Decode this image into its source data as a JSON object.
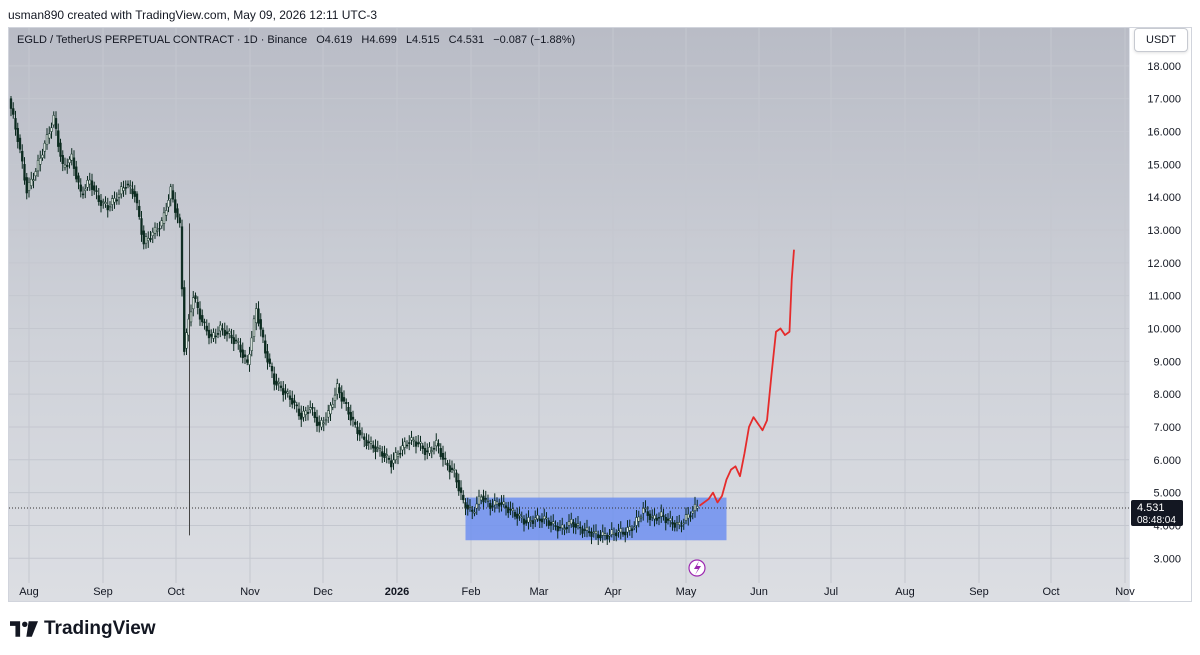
{
  "caption": "usman890 created with TradingView.com, May 09, 2026 12:11 UTC-3",
  "legend": {
    "symbol": "EGLD / TetherUS PERPETUAL CONTRACT · 1D · Binance",
    "open": "O4.619",
    "high": "H4.699",
    "low": "L4.515",
    "close": "C4.531",
    "change": "−0.087 (−1.88%)"
  },
  "currency": "USDT",
  "brand": "TradingView",
  "colors": {
    "up": "#0b2a1f",
    "down": "#0b2a1f",
    "projection": "#e52b2b",
    "box": "#6f8ff0"
  },
  "chart_data": {
    "type": "candlestick",
    "y_ticks": [
      "3.000",
      "4.000",
      "5.000",
      "6.000",
      "7.000",
      "8.000",
      "9.000",
      "10.000",
      "11.000",
      "12.000",
      "13.000",
      "14.000",
      "15.000",
      "16.000",
      "17.000",
      "18.000"
    ],
    "y_range": [
      2.4,
      18.3
    ],
    "x_labels": [
      "Aug",
      "Sep",
      "Oct",
      "Nov",
      "Dec",
      "2026",
      "Feb",
      "Mar",
      "Apr",
      "May",
      "Jun",
      "Jul",
      "Aug",
      "Sep",
      "Oct",
      "Nov"
    ],
    "last_price": "4.531",
    "countdown": "08:48:04",
    "price_path": [
      [
        0,
        17.0
      ],
      [
        4,
        15.8
      ],
      [
        8,
        14.2
      ],
      [
        12,
        14.8
      ],
      [
        16,
        15.6
      ],
      [
        20,
        16.4
      ],
      [
        24,
        14.9
      ],
      [
        28,
        15.2
      ],
      [
        32,
        14.1
      ],
      [
        36,
        14.5
      ],
      [
        40,
        13.9
      ],
      [
        44,
        13.7
      ],
      [
        48,
        14.0
      ],
      [
        52,
        14.4
      ],
      [
        56,
        14.1
      ],
      [
        60,
        12.6
      ],
      [
        64,
        12.9
      ],
      [
        68,
        13.2
      ],
      [
        72,
        14.2
      ],
      [
        76,
        13.1
      ],
      [
        78,
        9.4
      ],
      [
        82,
        11.0
      ],
      [
        86,
        10.2
      ],
      [
        90,
        9.7
      ],
      [
        94,
        10.0
      ],
      [
        98,
        9.8
      ],
      [
        102,
        9.5
      ],
      [
        106,
        8.9
      ],
      [
        110,
        10.6
      ],
      [
        114,
        9.3
      ],
      [
        118,
        8.4
      ],
      [
        122,
        8.1
      ],
      [
        126,
        7.8
      ],
      [
        130,
        7.3
      ],
      [
        134,
        7.6
      ],
      [
        138,
        7.0
      ],
      [
        142,
        7.4
      ],
      [
        146,
        8.2
      ],
      [
        150,
        7.6
      ],
      [
        154,
        7.0
      ],
      [
        158,
        6.6
      ],
      [
        162,
        6.4
      ],
      [
        166,
        6.2
      ],
      [
        170,
        5.9
      ],
      [
        174,
        6.3
      ],
      [
        178,
        6.6
      ],
      [
        182,
        6.5
      ],
      [
        186,
        6.2
      ],
      [
        190,
        6.5
      ],
      [
        194,
        5.9
      ],
      [
        198,
        5.6
      ],
      [
        202,
        4.7
      ],
      [
        206,
        4.4
      ],
      [
        210,
        4.9
      ],
      [
        214,
        4.6
      ],
      [
        218,
        4.7
      ],
      [
        222,
        4.5
      ],
      [
        226,
        4.3
      ],
      [
        230,
        4.1
      ],
      [
        234,
        4.2
      ],
      [
        238,
        4.2
      ],
      [
        242,
        4.0
      ],
      [
        246,
        3.9
      ],
      [
        250,
        4.1
      ],
      [
        254,
        3.9
      ],
      [
        258,
        3.8
      ],
      [
        262,
        3.7
      ],
      [
        266,
        3.7
      ],
      [
        270,
        3.8
      ],
      [
        274,
        3.8
      ],
      [
        278,
        4.0
      ],
      [
        282,
        4.5
      ],
      [
        286,
        4.2
      ],
      [
        290,
        4.3
      ],
      [
        294,
        4.1
      ],
      [
        298,
        4.0
      ],
      [
        302,
        4.3
      ],
      [
        306,
        4.6
      ]
    ],
    "range_box": {
      "start_index": 202,
      "end_index": 318,
      "low": 3.55,
      "high": 4.85
    },
    "projection": [
      [
        306,
        4.6
      ],
      [
        310,
        4.8
      ],
      [
        312,
        5.0
      ],
      [
        314,
        4.7
      ],
      [
        316,
        4.9
      ],
      [
        318,
        5.4
      ],
      [
        320,
        5.7
      ],
      [
        322,
        5.8
      ],
      [
        324,
        5.5
      ],
      [
        326,
        6.2
      ],
      [
        328,
        7.0
      ],
      [
        330,
        7.3
      ],
      [
        332,
        7.1
      ],
      [
        334,
        6.9
      ],
      [
        336,
        7.2
      ],
      [
        338,
        8.6
      ],
      [
        340,
        9.9
      ],
      [
        342,
        10.0
      ],
      [
        344,
        9.8
      ],
      [
        346,
        9.9
      ],
      [
        347,
        11.5
      ],
      [
        348,
        12.4
      ]
    ],
    "spike": {
      "index": 78,
      "low": 3.7,
      "high": 13.2
    }
  }
}
